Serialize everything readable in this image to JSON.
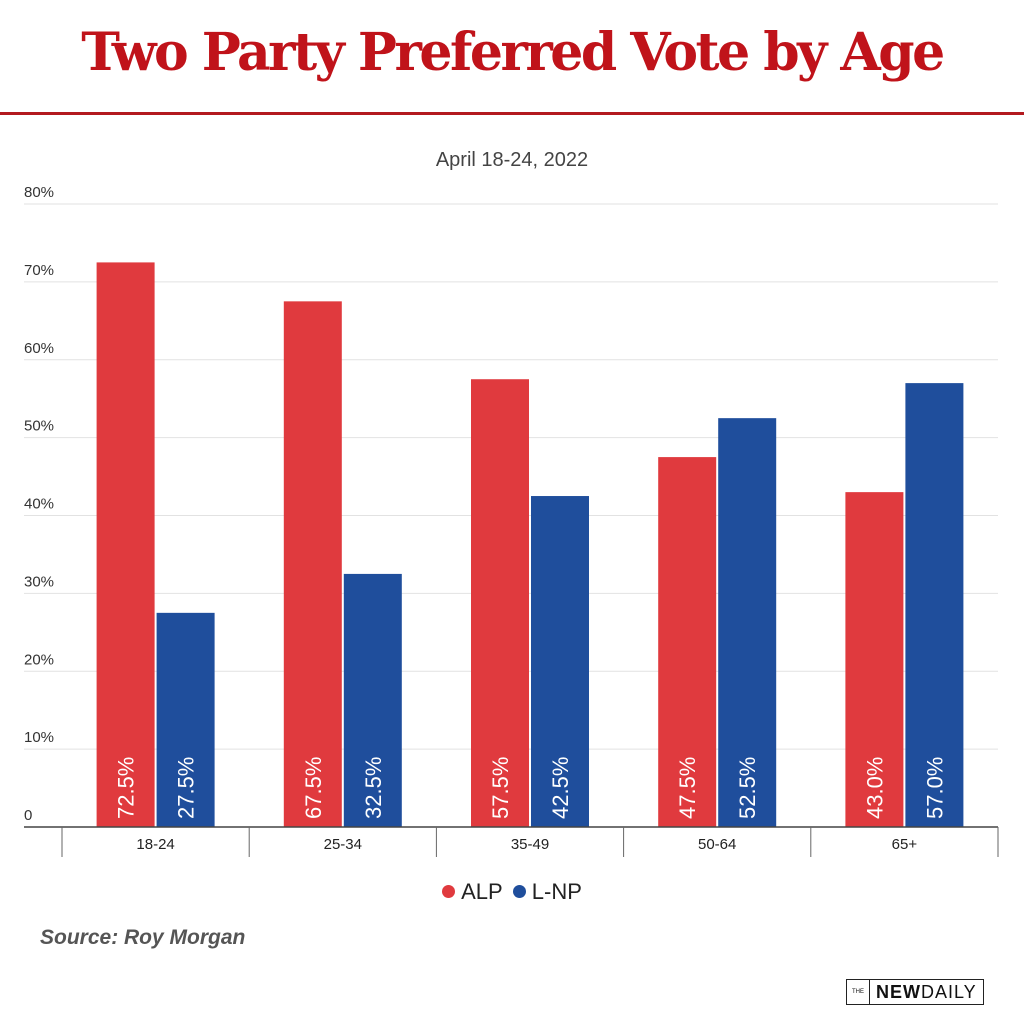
{
  "header": {
    "title": "Two Party Preferred Vote by Age"
  },
  "chart_data": {
    "type": "bar",
    "title": "Two Party Preferred Vote by Age",
    "subtitle": "April 18-24, 2022",
    "xlabel": "",
    "ylabel": "",
    "categories": [
      "18-24",
      "25-34",
      "35-49",
      "50-64",
      "65+"
    ],
    "series": [
      {
        "name": "ALP",
        "color": "#e03a3e",
        "values": [
          72.5,
          67.5,
          57.5,
          47.5,
          43.0
        ],
        "labels": [
          "72.5%",
          "67.5%",
          "57.5%",
          "47.5%",
          "43.0%"
        ]
      },
      {
        "name": "L-NP",
        "color": "#1f4e9c",
        "values": [
          27.5,
          32.5,
          42.5,
          52.5,
          57.0
        ],
        "labels": [
          "27.5%",
          "32.5%",
          "42.5%",
          "52.5%",
          "57.0%"
        ]
      }
    ],
    "ylim": [
      0,
      80
    ],
    "yticks": [
      0,
      10,
      20,
      30,
      40,
      50,
      60,
      70,
      80
    ],
    "ytick_labels": [
      "0",
      "10%",
      "20%",
      "30%",
      "40%",
      "50%",
      "60%",
      "70%",
      "80%"
    ],
    "grid": true,
    "legend_position": "bottom-center",
    "data_labels": "rotated inside bar base"
  },
  "legend": {
    "items": [
      {
        "label": "ALP",
        "color": "#e03a3e"
      },
      {
        "label": "L-NP",
        "color": "#1f4e9c"
      }
    ]
  },
  "footer": {
    "source": "Source: Roy Morgan",
    "logo_the": "THE",
    "logo_new": "NEW",
    "logo_daily": "DAILY"
  }
}
